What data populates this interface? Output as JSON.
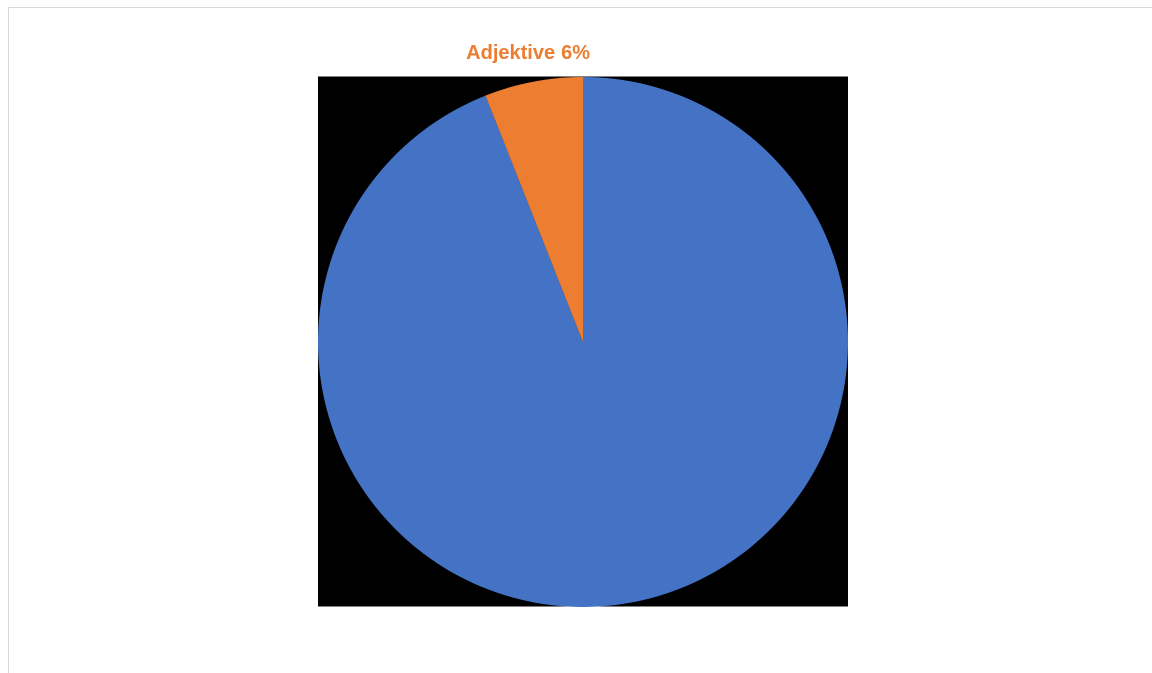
{
  "chart_data": {
    "type": "pie",
    "categories": [
      null,
      "Adjektive"
    ],
    "values": [
      94,
      6
    ],
    "value_labels": [
      null,
      "6%"
    ],
    "colors": [
      "#4472c4",
      "#ed7d31"
    ],
    "background": "#000000"
  }
}
